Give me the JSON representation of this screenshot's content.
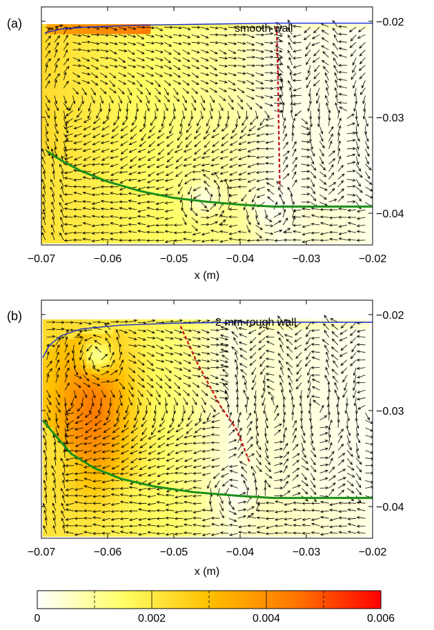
{
  "chart_data": [
    {
      "type": "heatmap",
      "panel_label": "(a)",
      "annotation": "smooth wall",
      "xlabel": "x (m)",
      "ylabel": "",
      "xlim": [
        -0.07,
        -0.02
      ],
      "ylim": [
        -0.0433,
        -0.0185
      ],
      "x_ticks": [
        -0.07,
        -0.06,
        -0.05,
        -0.04,
        -0.03,
        -0.02
      ],
      "x_tick_labels": [
        "−0.07",
        "−0.06",
        "−0.05",
        "−0.04",
        "−0.03",
        "−0.02"
      ],
      "y_ticks": [
        -0.02,
        -0.03,
        -0.04
      ],
      "y_tick_labels": [
        "−0.02",
        "−0.03",
        "−0.04"
      ],
      "y_axis_side": "right",
      "blue_line": [
        [
          -0.0695,
          -0.0212
        ],
        [
          -0.067,
          -0.0208
        ],
        [
          -0.063,
          -0.0206
        ],
        [
          -0.055,
          -0.0204
        ],
        [
          -0.045,
          -0.0203
        ],
        [
          -0.035,
          -0.0202
        ],
        [
          -0.02,
          -0.0202
        ]
      ],
      "green_line": [
        [
          -0.0692,
          -0.0335
        ],
        [
          -0.067,
          -0.0345
        ],
        [
          -0.064,
          -0.0356
        ],
        [
          -0.06,
          -0.0367
        ],
        [
          -0.055,
          -0.0377
        ],
        [
          -0.05,
          -0.0384
        ],
        [
          -0.045,
          -0.0388
        ],
        [
          -0.04,
          -0.0391
        ],
        [
          -0.035,
          -0.0393
        ],
        [
          -0.03,
          -0.0393
        ],
        [
          -0.02,
          -0.0393
        ]
      ],
      "red_dashed_line": [
        [
          -0.0345,
          -0.0205
        ],
        [
          -0.0343,
          -0.025
        ],
        [
          -0.0342,
          -0.03
        ],
        [
          -0.0341,
          -0.0335
        ],
        [
          -0.034,
          -0.0373
        ]
      ],
      "field_extent": {
        "x": [
          -0.07,
          -0.0205
        ],
        "y": [
          -0.0431,
          -0.0203
        ]
      },
      "hot_region": {
        "x": [
          -0.0695,
          -0.0535
        ],
        "y": [
          -0.0212,
          -0.0203
        ],
        "value": 0.0042
      },
      "vortex_centers": [
        {
          "x": -0.0455,
          "y": -0.0385
        },
        {
          "x": -0.0357,
          "y": -0.0395
        }
      ],
      "separation_x": -0.0343
    },
    {
      "type": "heatmap",
      "panel_label": "(b)",
      "annotation": "2 mm rough wall",
      "xlabel": "x (m)",
      "ylabel": "",
      "xlim": [
        -0.07,
        -0.02
      ],
      "ylim": [
        -0.0433,
        -0.0185
      ],
      "x_ticks": [
        -0.07,
        -0.06,
        -0.05,
        -0.04,
        -0.03,
        -0.02
      ],
      "x_tick_labels": [
        "−0.07",
        "−0.06",
        "−0.05",
        "−0.04",
        "−0.03",
        "−0.02"
      ],
      "y_ticks": [
        -0.02,
        -0.03,
        -0.04
      ],
      "y_tick_labels": [
        "−0.02",
        "−0.03",
        "−0.04"
      ],
      "y_axis_side": "right",
      "blue_line": [
        [
          -0.0698,
          -0.0245
        ],
        [
          -0.0688,
          -0.0232
        ],
        [
          -0.067,
          -0.0222
        ],
        [
          -0.064,
          -0.0215
        ],
        [
          -0.058,
          -0.0211
        ],
        [
          -0.05,
          -0.0209
        ],
        [
          -0.04,
          -0.0208
        ],
        [
          -0.02,
          -0.0208
        ]
      ],
      "green_line": [
        [
          -0.0698,
          -0.031
        ],
        [
          -0.068,
          -0.0325
        ],
        [
          -0.0655,
          -0.0345
        ],
        [
          -0.062,
          -0.036
        ],
        [
          -0.058,
          -0.0371
        ],
        [
          -0.053,
          -0.0379
        ],
        [
          -0.047,
          -0.0385
        ],
        [
          -0.04,
          -0.0389
        ],
        [
          -0.035,
          -0.0391
        ],
        [
          -0.03,
          -0.0391
        ],
        [
          -0.02,
          -0.0391
        ]
      ],
      "red_dashed_line": [
        [
          -0.049,
          -0.0212
        ],
        [
          -0.0465,
          -0.025
        ],
        [
          -0.043,
          -0.0295
        ],
        [
          -0.0405,
          -0.032
        ],
        [
          -0.0385,
          -0.0355
        ]
      ],
      "field_extent": {
        "x": [
          -0.0698,
          -0.0205
        ],
        "y": [
          -0.0431,
          -0.0205
        ]
      },
      "hot_region": {
        "x": [
          -0.068,
          -0.056
        ],
        "y": [
          -0.0375,
          -0.0225
        ],
        "value": 0.0045
      },
      "vortex_centers": [
        {
          "x": -0.0615,
          "y": -0.0243
        },
        {
          "x": -0.0405,
          "y": -0.0385
        }
      ],
      "separation_x": -0.042
    }
  ],
  "colorbar": {
    "min": 0,
    "max": 0.006,
    "tick_values": [
      0,
      0.002,
      0.004,
      0.006
    ],
    "tick_labels": [
      "0",
      "0.002",
      "0.004",
      "0.006"
    ],
    "minor_tick_values": [
      0.001,
      0.003,
      0.005
    ],
    "stops": [
      "#ffffff",
      "#ffff66",
      "#ffc000",
      "#ff7700",
      "#ff0000"
    ]
  }
}
